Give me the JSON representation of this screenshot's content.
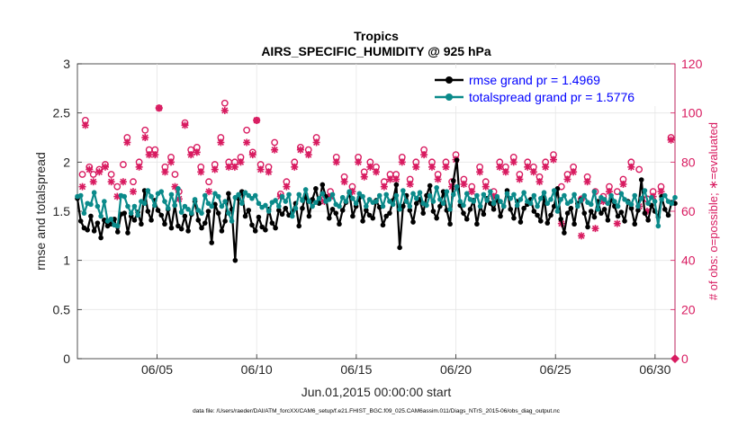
{
  "chart_data": {
    "type": "line",
    "title": "Tropics",
    "subtitle": "AIRS_SPECIFIC_HUMIDITY @ 925 hPa",
    "xlabel": "Jun.01,2015 00:00:00 start",
    "ylabel": "rmse and totalspread",
    "y2label": "# of obs: o=possible; ∗=evaluated",
    "footnote": "data file: /Users/raeder/DAI/ATM_forcXX/CAM6_setup/f.e21.FHIST_BGC.f09_025.CAM6assim.011/Diags_NTrS_2015-06/obs_diag_output.nc",
    "xlim": [
      1,
      31
    ],
    "ylim": [
      0,
      3
    ],
    "y2lim": [
      0,
      120
    ],
    "xticks": [
      5,
      10,
      15,
      20,
      25,
      30
    ],
    "xticklabels": [
      "06/05",
      "06/10",
      "06/15",
      "06/20",
      "06/25",
      "06/30"
    ],
    "yticks": [
      0,
      0.5,
      1,
      1.5,
      2,
      2.5,
      3
    ],
    "yticklabels": [
      "0",
      "0.5",
      "1",
      "1.5",
      "2",
      "2.5",
      "3"
    ],
    "y2ticks": [
      0,
      20,
      40,
      60,
      80,
      100,
      120
    ],
    "y2ticklabels": [
      "0",
      "20",
      "40",
      "60",
      "80",
      "100",
      "120"
    ],
    "grid": true,
    "legend_position": "top-right",
    "series": [
      {
        "name": "rmse grand pr = 1.4969",
        "color": "#000000",
        "axis": "left",
        "values": [
          1.63,
          1.4,
          1.33,
          1.31,
          1.45,
          1.3,
          1.38,
          1.23,
          1.41,
          1.35,
          1.37,
          1.42,
          1.29,
          1.47,
          1.48,
          1.28,
          1.45,
          1.41,
          1.49,
          1.37,
          1.71,
          1.5,
          1.41,
          1.61,
          1.51,
          1.46,
          1.37,
          1.52,
          1.33,
          1.56,
          1.35,
          1.32,
          1.45,
          1.3,
          1.47,
          1.6,
          1.41,
          1.33,
          1.38,
          1.5,
          1.18,
          1.57,
          1.48,
          1.3,
          1.4,
          1.68,
          1.52,
          1.0,
          1.63,
          1.7,
          1.45,
          1.51,
          1.36,
          1.3,
          1.44,
          1.34,
          1.31,
          1.52,
          1.38,
          1.33,
          1.51,
          1.47,
          1.53,
          1.46,
          1.49,
          1.58,
          1.35,
          1.53,
          1.67,
          1.45,
          1.62,
          1.73,
          1.58,
          1.77,
          1.65,
          1.43,
          1.52,
          1.48,
          1.37,
          1.51,
          1.59,
          1.69,
          1.45,
          1.55,
          1.64,
          1.4,
          1.51,
          1.46,
          1.43,
          1.61,
          1.54,
          1.36,
          1.45,
          1.48,
          1.61,
          1.77,
          1.13,
          1.55,
          1.66,
          1.51,
          1.39,
          1.58,
          1.62,
          1.48,
          1.66,
          1.76,
          1.5,
          1.43,
          1.55,
          1.7,
          1.51,
          1.37,
          1.81,
          2.02,
          1.56,
          1.48,
          1.42,
          1.52,
          1.61,
          1.37,
          1.55,
          1.47,
          1.63,
          1.58,
          1.52,
          1.64,
          1.45,
          1.55,
          1.71,
          1.52,
          1.43,
          1.6,
          1.39,
          1.53,
          1.57,
          1.62,
          1.5,
          1.46,
          1.4,
          1.64,
          1.38,
          1.46,
          1.55,
          1.73,
          1.42,
          1.28,
          1.48,
          1.53,
          1.37,
          1.58,
          1.62,
          1.48,
          1.34,
          1.5,
          1.44,
          1.6,
          1.48,
          1.52,
          1.41,
          1.63,
          1.55,
          1.45,
          1.49,
          1.4,
          1.6,
          1.53,
          1.37,
          1.51,
          1.82,
          1.48,
          1.41,
          1.56,
          1.5,
          1.44,
          1.65,
          1.52,
          1.46,
          1.59,
          1.58
        ]
      },
      {
        "name": "totalspread grand pr = 1.5776",
        "color": "#0a8a8a",
        "axis": "left",
        "values": [
          1.65,
          1.66,
          1.48,
          1.58,
          1.57,
          1.69,
          1.55,
          1.45,
          1.6,
          1.4,
          1.42,
          1.36,
          1.35,
          1.66,
          1.65,
          1.55,
          1.48,
          1.55,
          1.46,
          1.6,
          1.58,
          1.71,
          1.65,
          1.56,
          1.68,
          1.7,
          1.6,
          1.53,
          1.67,
          1.56,
          1.73,
          1.49,
          1.55,
          1.52,
          1.48,
          1.62,
          1.51,
          1.48,
          1.66,
          1.58,
          1.55,
          1.68,
          1.65,
          1.55,
          1.6,
          1.48,
          1.4,
          1.64,
          1.67,
          1.58,
          1.69,
          1.66,
          1.63,
          1.66,
          1.58,
          1.54,
          1.56,
          1.5,
          1.59,
          1.61,
          1.55,
          1.65,
          1.6,
          1.67,
          1.45,
          1.53,
          1.67,
          1.61,
          1.72,
          1.6,
          1.55,
          1.59,
          1.63,
          1.68,
          1.6,
          1.62,
          1.67,
          1.57,
          1.55,
          1.64,
          1.6,
          1.7,
          1.63,
          1.58,
          1.68,
          1.65,
          1.55,
          1.62,
          1.59,
          1.6,
          1.66,
          1.55,
          1.67,
          1.6,
          1.57,
          1.66,
          1.52,
          1.71,
          1.6,
          1.55,
          1.68,
          1.63,
          1.69,
          1.58,
          1.56,
          1.66,
          1.6,
          1.74,
          1.62,
          1.58,
          1.7,
          1.52,
          1.67,
          1.75,
          1.6,
          1.56,
          1.68,
          1.62,
          1.6,
          1.66,
          1.55,
          1.67,
          1.61,
          1.7,
          1.58,
          1.65,
          1.6,
          1.55,
          1.68,
          1.63,
          1.67,
          1.56,
          1.62,
          1.69,
          1.6,
          1.58,
          1.66,
          1.55,
          1.63,
          1.69,
          1.58,
          1.62,
          1.71,
          1.5,
          1.62,
          1.66,
          1.58,
          1.6,
          1.67,
          1.55,
          1.61,
          1.66,
          1.59,
          1.57,
          1.7,
          1.52,
          1.64,
          1.62,
          1.58,
          1.66,
          1.6,
          1.55,
          1.68,
          1.62,
          1.59,
          1.57,
          1.66,
          1.55,
          1.63,
          1.71,
          1.58,
          1.64,
          1.6,
          1.35,
          1.62,
          1.66,
          1.6,
          1.58,
          1.64
        ]
      }
    ],
    "obs_series": [
      {
        "name": "possible",
        "marker": "o",
        "color": "#d81b60",
        "axis": "right",
        "points": [
          [
            1.25,
            75
          ],
          [
            1.4,
            97
          ],
          [
            1.6,
            78
          ],
          [
            1.8,
            75
          ],
          [
            2.1,
            77
          ],
          [
            2.4,
            79
          ],
          [
            2.7,
            75
          ],
          [
            3.0,
            70
          ],
          [
            3.3,
            79
          ],
          [
            3.5,
            90
          ],
          [
            3.8,
            72
          ],
          [
            4.1,
            80
          ],
          [
            4.4,
            93
          ],
          [
            4.6,
            85
          ],
          [
            4.9,
            85
          ],
          [
            5.1,
            102
          ],
          [
            5.4,
            78
          ],
          [
            5.7,
            82
          ],
          [
            5.9,
            75
          ],
          [
            6.1,
            68
          ],
          [
            6.4,
            96
          ],
          [
            6.7,
            85
          ],
          [
            7.0,
            86
          ],
          [
            7.2,
            78
          ],
          [
            7.6,
            72
          ],
          [
            7.9,
            79
          ],
          [
            8.2,
            90
          ],
          [
            8.4,
            104
          ],
          [
            8.6,
            80
          ],
          [
            8.9,
            80
          ],
          [
            9.2,
            82
          ],
          [
            9.5,
            93
          ],
          [
            9.8,
            84
          ],
          [
            10.0,
            97
          ],
          [
            10.2,
            79
          ],
          [
            10.6,
            78
          ],
          [
            10.9,
            88
          ],
          [
            11.2,
            67
          ],
          [
            11.5,
            72
          ],
          [
            11.9,
            80
          ],
          [
            12.2,
            86
          ],
          [
            12.6,
            85
          ],
          [
            13.0,
            90
          ],
          [
            13.4,
            65
          ],
          [
            13.7,
            68
          ],
          [
            14.0,
            82
          ],
          [
            14.4,
            74
          ],
          [
            14.8,
            70
          ],
          [
            15.1,
            82
          ],
          [
            15.4,
            76
          ],
          [
            15.7,
            80
          ],
          [
            16.0,
            78
          ],
          [
            16.4,
            72
          ],
          [
            16.7,
            75
          ],
          [
            17.0,
            75
          ],
          [
            17.3,
            82
          ],
          [
            17.7,
            73
          ],
          [
            18.0,
            80
          ],
          [
            18.4,
            85
          ],
          [
            18.8,
            80
          ],
          [
            19.1,
            75
          ],
          [
            19.5,
            80
          ],
          [
            19.8,
            72
          ],
          [
            20.0,
            83
          ],
          [
            20.4,
            73
          ],
          [
            20.8,
            70
          ],
          [
            21.2,
            78
          ],
          [
            21.5,
            72
          ],
          [
            21.9,
            68
          ],
          [
            22.2,
            80
          ],
          [
            22.5,
            78
          ],
          [
            22.9,
            82
          ],
          [
            23.2,
            75
          ],
          [
            23.6,
            80
          ],
          [
            23.9,
            78
          ],
          [
            24.2,
            74
          ],
          [
            24.5,
            80
          ],
          [
            24.9,
            83
          ],
          [
            25.3,
            70
          ],
          [
            25.6,
            75
          ],
          [
            25.9,
            78
          ],
          [
            26.3,
            65
          ],
          [
            26.6,
            74
          ],
          [
            27.0,
            68
          ],
          [
            27.4,
            66
          ],
          [
            27.7,
            70
          ],
          [
            28.1,
            68
          ],
          [
            28.4,
            73
          ],
          [
            28.8,
            80
          ],
          [
            29.2,
            77
          ],
          [
            29.6,
            65
          ],
          [
            29.9,
            68
          ],
          [
            30.3,
            70
          ],
          [
            30.8,
            90
          ]
        ]
      },
      {
        "name": "evaluated",
        "marker": "*",
        "color": "#d81b60",
        "axis": "right",
        "points": [
          [
            1.25,
            70
          ],
          [
            1.4,
            95
          ],
          [
            1.6,
            77
          ],
          [
            1.8,
            72
          ],
          [
            2.1,
            76
          ],
          [
            2.4,
            78
          ],
          [
            2.7,
            72
          ],
          [
            3.0,
            66
          ],
          [
            3.3,
            72
          ],
          [
            3.5,
            88
          ],
          [
            3.8,
            68
          ],
          [
            4.1,
            78
          ],
          [
            4.4,
            90
          ],
          [
            4.6,
            83
          ],
          [
            4.9,
            83
          ],
          [
            5.1,
            102
          ],
          [
            5.4,
            76
          ],
          [
            5.7,
            80
          ],
          [
            5.9,
            70
          ],
          [
            6.1,
            65
          ],
          [
            6.4,
            95
          ],
          [
            6.7,
            83
          ],
          [
            7.0,
            84
          ],
          [
            7.2,
            76
          ],
          [
            7.6,
            68
          ],
          [
            7.9,
            77
          ],
          [
            8.2,
            88
          ],
          [
            8.4,
            101
          ],
          [
            8.6,
            78
          ],
          [
            8.9,
            78
          ],
          [
            9.2,
            80
          ],
          [
            9.5,
            88
          ],
          [
            9.8,
            83
          ],
          [
            10.0,
            97
          ],
          [
            10.2,
            77
          ],
          [
            10.6,
            76
          ],
          [
            10.9,
            85
          ],
          [
            11.2,
            66
          ],
          [
            11.5,
            70
          ],
          [
            11.9,
            78
          ],
          [
            12.2,
            85
          ],
          [
            12.6,
            83
          ],
          [
            13.0,
            88
          ],
          [
            13.4,
            64
          ],
          [
            13.7,
            66
          ],
          [
            14.0,
            80
          ],
          [
            14.4,
            72
          ],
          [
            14.8,
            68
          ],
          [
            15.1,
            80
          ],
          [
            15.4,
            74
          ],
          [
            15.7,
            78
          ],
          [
            16.0,
            76
          ],
          [
            16.4,
            70
          ],
          [
            16.7,
            73
          ],
          [
            17.0,
            73
          ],
          [
            17.3,
            80
          ],
          [
            17.7,
            71
          ],
          [
            18.0,
            78
          ],
          [
            18.4,
            83
          ],
          [
            18.8,
            78
          ],
          [
            19.1,
            73
          ],
          [
            19.5,
            78
          ],
          [
            19.8,
            70
          ],
          [
            20.0,
            81
          ],
          [
            20.4,
            71
          ],
          [
            20.8,
            68
          ],
          [
            21.2,
            76
          ],
          [
            21.5,
            70
          ],
          [
            21.9,
            66
          ],
          [
            22.2,
            78
          ],
          [
            22.5,
            76
          ],
          [
            22.9,
            80
          ],
          [
            23.2,
            73
          ],
          [
            23.6,
            78
          ],
          [
            23.9,
            76
          ],
          [
            24.2,
            72
          ],
          [
            24.5,
            78
          ],
          [
            24.9,
            81
          ],
          [
            25.3,
            55
          ],
          [
            25.6,
            73
          ],
          [
            25.9,
            76
          ],
          [
            26.3,
            50
          ],
          [
            26.6,
            72
          ],
          [
            27.0,
            53
          ],
          [
            27.4,
            64
          ],
          [
            27.7,
            68
          ],
          [
            28.1,
            55
          ],
          [
            28.4,
            71
          ],
          [
            28.8,
            78
          ],
          [
            29.2,
            62
          ],
          [
            29.6,
            60
          ],
          [
            29.9,
            66
          ],
          [
            30.3,
            68
          ],
          [
            30.8,
            89
          ]
        ]
      }
    ],
    "special_markers": [
      {
        "name": "zero-obs-marker",
        "x": 31,
        "y2": 0,
        "marker": "diamond",
        "color": "#d81b60"
      }
    ]
  }
}
